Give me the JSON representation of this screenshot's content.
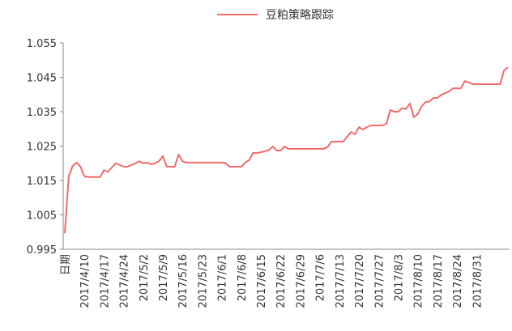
{
  "chart_data": {
    "type": "line",
    "categories": [
      "日期",
      null,
      null,
      null,
      null,
      "2017/4/10",
      null,
      null,
      null,
      null,
      "2017/4/17",
      null,
      null,
      null,
      null,
      "2017/4/24",
      null,
      null,
      null,
      null,
      "2017/5/2",
      null,
      null,
      null,
      null,
      "2017/5/9",
      null,
      null,
      null,
      null,
      "2017/5/16",
      null,
      null,
      null,
      null,
      "2017/5/23",
      null,
      null,
      null,
      null,
      "2017/6/1",
      null,
      null,
      null,
      null,
      "2017/6/8",
      null,
      null,
      null,
      null,
      "2017/6/15",
      null,
      null,
      null,
      null,
      "2017/6/22",
      null,
      null,
      null,
      null,
      "2017/6/29",
      null,
      null,
      null,
      null,
      "2017/7/6",
      null,
      null,
      null,
      null,
      "2017/7/13",
      null,
      null,
      null,
      null,
      "2017/7/20",
      null,
      null,
      null,
      null,
      "2017/7/27",
      null,
      null,
      null,
      null,
      "2017/8/3",
      null,
      null,
      null,
      null,
      "2017/8/10",
      null,
      null,
      null,
      null,
      "2017/8/17",
      null,
      null,
      null,
      null,
      "2017/8/24",
      null,
      null,
      null,
      null,
      "2017/8/31",
      null,
      null,
      null,
      null,
      null,
      null,
      null,
      null
    ],
    "series": [
      {
        "name": "豆粕策略跟踪",
        "color": "#f06b6b",
        "values": [
          0.9997,
          1.0162,
          1.0192,
          1.0202,
          1.019,
          1.0162,
          1.016,
          1.016,
          1.016,
          1.016,
          1.018,
          1.0175,
          1.0188,
          1.02,
          1.0195,
          1.019,
          1.019,
          1.0195,
          1.02,
          1.0206,
          1.02,
          1.0202,
          1.0197,
          1.02,
          1.0206,
          1.0221,
          1.019,
          1.019,
          1.019,
          1.0225,
          1.0206,
          1.0202,
          1.0202,
          1.0202,
          1.0202,
          1.0202,
          1.0202,
          1.0202,
          1.0202,
          1.0202,
          1.0202,
          1.02,
          1.019,
          1.019,
          1.019,
          1.019,
          1.0202,
          1.0209,
          1.023,
          1.023,
          1.0232,
          1.0235,
          1.0238,
          1.0249,
          1.0237,
          1.0237,
          1.0249,
          1.0242,
          1.0242,
          1.0242,
          1.0242,
          1.0242,
          1.0242,
          1.0242,
          1.0242,
          1.0242,
          1.0242,
          1.0247,
          1.0263,
          1.0263,
          1.0263,
          1.0263,
          1.0277,
          1.0291,
          1.0284,
          1.0305,
          1.0298,
          1.0305,
          1.031,
          1.031,
          1.031,
          1.031,
          1.0315,
          1.0355,
          1.035,
          1.035,
          1.036,
          1.0358,
          1.0374,
          1.0334,
          1.0343,
          1.0366,
          1.0378,
          1.038,
          1.039,
          1.039,
          1.0399,
          1.0404,
          1.0409,
          1.0418,
          1.0418,
          1.0418,
          1.0439,
          1.0435,
          1.043,
          1.043,
          1.043,
          1.043,
          1.043,
          1.043,
          1.043,
          1.043,
          1.047,
          1.0479
        ]
      }
    ],
    "ylim": [
      0.995,
      1.055
    ],
    "yticks": [
      0.995,
      1.005,
      1.015,
      1.025,
      1.035,
      1.045,
      1.055
    ],
    "legend": "top"
  }
}
